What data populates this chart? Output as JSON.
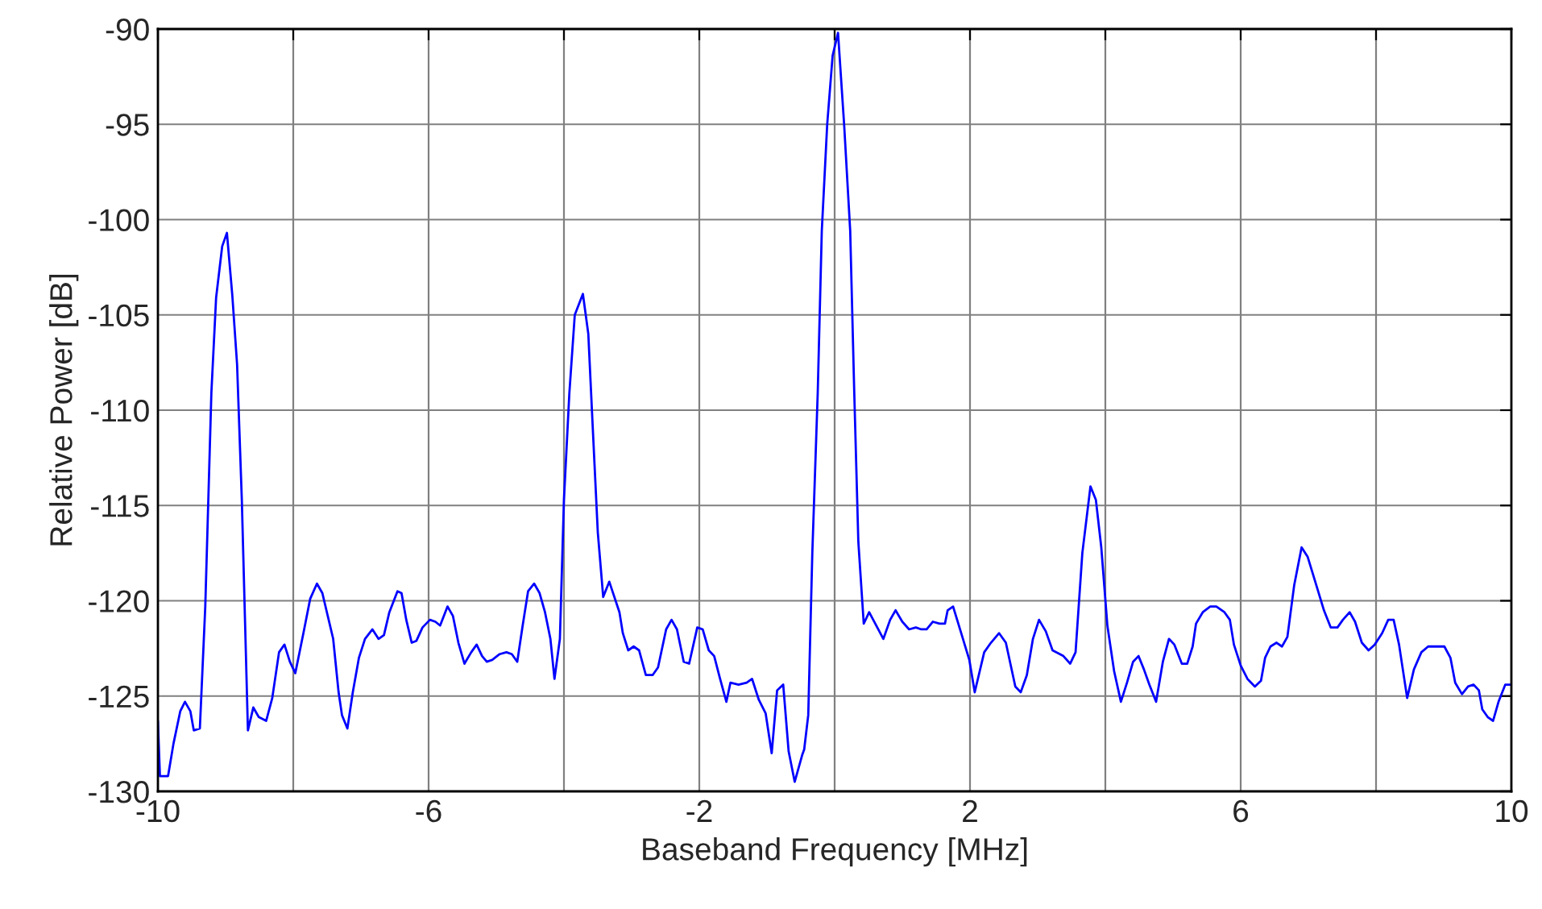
{
  "chart_data": {
    "type": "line",
    "xlabel": "Baseband Frequency [MHz]",
    "ylabel": "Relative Power [dB]",
    "xlim": [
      -10,
      10
    ],
    "ylim": [
      -130,
      -90
    ],
    "xticks": [
      -10,
      {
        "value": -8,
        "label": null
      },
      -6,
      {
        "value": -4,
        "label": null
      },
      -2,
      {
        "value": 0,
        "label": null
      },
      2,
      {
        "value": 4,
        "label": null
      },
      6,
      {
        "value": 8,
        "label": null
      },
      10
    ],
    "yticks": [
      -130,
      -125,
      -120,
      -115,
      -110,
      -105,
      -100,
      -95,
      -90
    ],
    "grid": true,
    "marker": "none",
    "line_style": "solid",
    "series": [
      {
        "color": "#0000ff",
        "x": [
          -10,
          -9.97,
          -9.9,
          -9.85,
          -9.77,
          -9.67,
          -9.6,
          -9.52,
          -9.47,
          -9.38,
          -9.3,
          -9.21,
          -9.14,
          -9.05,
          -8.98,
          -8.9,
          -8.83,
          -8.76,
          -8.67,
          -8.59,
          -8.51,
          -8.4,
          -8.31,
          -8.21,
          -8.13,
          -8.05,
          -7.97,
          -7.85,
          -7.75,
          -7.65,
          -7.57,
          -7.49,
          -7.41,
          -7.33,
          -7.28,
          -7.2,
          -7.12,
          -7.03,
          -6.94,
          -6.83,
          -6.74,
          -6.66,
          -6.58,
          -6.46,
          -6.4,
          -6.33,
          -6.25,
          -6.18,
          -6.09,
          -5.98,
          -5.9,
          -5.83,
          -5.72,
          -5.64,
          -5.56,
          -5.47,
          -5.37,
          -5.29,
          -5.21,
          -5.14,
          -5.06,
          -4.95,
          -4.85,
          -4.77,
          -4.69,
          -4.61,
          -4.53,
          -4.44,
          -4.36,
          -4.28,
          -4.2,
          -4.14,
          -4.06,
          -4.0,
          -3.92,
          -3.84,
          -3.72,
          -3.64,
          -3.58,
          -3.5,
          -3.42,
          -3.33,
          -3.18,
          -3.13,
          -3.05,
          -2.97,
          -2.89,
          -2.79,
          -2.69,
          -2.61,
          -2.49,
          -2.41,
          -2.33,
          -2.23,
          -2.15,
          -2.03,
          -1.95,
          -1.86,
          -1.78,
          -1.7,
          -1.6,
          -1.54,
          -1.42,
          -1.3,
          -1.22,
          -1.12,
          -1.02,
          -0.93,
          -0.85,
          -0.76,
          -0.68,
          -0.59,
          -0.48,
          -0.45,
          -0.39,
          -0.33,
          -0.25,
          -0.19,
          -0.11,
          -0.03,
          0.05,
          0.14,
          0.23,
          0.29,
          0.35,
          0.43,
          0.51,
          0.6,
          0.72,
          0.82,
          0.9,
          1.0,
          1.1,
          1.2,
          1.28,
          1.36,
          1.45,
          1.55,
          1.63,
          1.67,
          1.75,
          1.87,
          1.99,
          2.07,
          2.21,
          2.31,
          2.43,
          2.53,
          2.67,
          2.75,
          2.84,
          2.93,
          3.02,
          3.12,
          3.22,
          3.38,
          3.48,
          3.56,
          3.66,
          3.78,
          3.86,
          3.94,
          4.03,
          4.13,
          4.23,
          4.32,
          4.41,
          4.49,
          4.57,
          4.65,
          4.75,
          4.85,
          4.94,
          5.02,
          5.13,
          5.21,
          5.29,
          5.34,
          5.44,
          5.55,
          5.64,
          5.76,
          5.84,
          5.9,
          6.0,
          6.1,
          6.21,
          6.3,
          6.36,
          6.44,
          6.53,
          6.61,
          6.69,
          6.79,
          6.9,
          6.99,
          7.11,
          7.23,
          7.33,
          7.43,
          7.51,
          7.61,
          7.69,
          7.79,
          7.89,
          7.98,
          8.09,
          8.18,
          8.26,
          8.34,
          8.46,
          8.56,
          8.67,
          8.77,
          8.89,
          9.01,
          9.1,
          9.17,
          9.27,
          9.36,
          9.44,
          9.52,
          9.57,
          9.65,
          9.73,
          9.81,
          9.91,
          9.99
        ],
        "values": [
          -126.3,
          -129.2,
          -129.2,
          -129.2,
          -127.5,
          -125.8,
          -125.3,
          -125.8,
          -126.8,
          -126.7,
          -120.3,
          -109.1,
          -104.1,
          -101.4,
          -100.7,
          -104.0,
          -107.6,
          -114.7,
          -126.8,
          -125.6,
          -126.1,
          -126.3,
          -125.1,
          -122.7,
          -122.3,
          -123.2,
          -123.8,
          -121.7,
          -119.9,
          -119.1,
          -119.6,
          -120.8,
          -122.0,
          -124.8,
          -126.0,
          -126.7,
          -124.8,
          -123.0,
          -122.0,
          -121.5,
          -122.0,
          -121.8,
          -120.6,
          -119.5,
          -119.6,
          -121.0,
          -122.2,
          -122.1,
          -121.4,
          -121.0,
          -121.1,
          -121.3,
          -120.3,
          -120.8,
          -122.2,
          -123.3,
          -122.7,
          -122.3,
          -122.9,
          -123.2,
          -123.1,
          -122.8,
          -122.7,
          -122.8,
          -123.2,
          -121.3,
          -119.5,
          -119.1,
          -119.6,
          -120.6,
          -122.0,
          -124.1,
          -122.0,
          -114.7,
          -109.1,
          -105.0,
          -103.9,
          -106.0,
          -110.5,
          -116.4,
          -119.8,
          -119.0,
          -120.6,
          -121.7,
          -122.6,
          -122.4,
          -122.6,
          -123.9,
          -123.9,
          -123.5,
          -121.5,
          -121.0,
          -121.5,
          -123.2,
          -123.3,
          -121.4,
          -121.5,
          -122.6,
          -122.9,
          -124.0,
          -125.3,
          -124.3,
          -124.4,
          -124.3,
          -124.1,
          -125.2,
          -125.9,
          -128.0,
          -124.7,
          -124.4,
          -127.9,
          -129.5,
          -128.1,
          -127.8,
          -126.0,
          -117.5,
          -109.1,
          -100.6,
          -95.0,
          -91.4,
          -90.2,
          -95.0,
          -100.6,
          -109.1,
          -116.9,
          -121.2,
          -120.6,
          -121.2,
          -122.0,
          -121.0,
          -120.5,
          -121.1,
          -121.5,
          -121.4,
          -121.5,
          -121.5,
          -121.1,
          -121.2,
          -121.2,
          -120.5,
          -120.3,
          -121.7,
          -123.1,
          -124.8,
          -122.7,
          -122.2,
          -121.7,
          -122.2,
          -124.5,
          -124.8,
          -123.9,
          -122.0,
          -121.0,
          -121.6,
          -122.6,
          -122.9,
          -123.3,
          -122.7,
          -117.5,
          -114.0,
          -114.7,
          -117.2,
          -121.3,
          -123.7,
          -125.3,
          -124.3,
          -123.2,
          -122.9,
          -123.6,
          -124.4,
          -125.3,
          -123.2,
          -122.0,
          -122.3,
          -123.3,
          -123.3,
          -122.4,
          -121.2,
          -120.6,
          -120.3,
          -120.3,
          -120.6,
          -121.0,
          -122.3,
          -123.4,
          -124.1,
          -124.5,
          -124.2,
          -123.0,
          -122.4,
          -122.2,
          -122.4,
          -121.9,
          -119.2,
          -117.2,
          -117.7,
          -119.1,
          -120.5,
          -121.4,
          -121.4,
          -121.0,
          -120.6,
          -121.1,
          -122.2,
          -122.6,
          -122.3,
          -121.7,
          -121.0,
          -121.0,
          -122.3,
          -125.1,
          -123.6,
          -122.7,
          -122.4,
          -122.4,
          -122.4,
          -123.0,
          -124.3,
          -124.9,
          -124.5,
          -124.4,
          -124.7,
          -125.7,
          -126.1,
          -126.3,
          -125.3,
          -124.4,
          -124.4
        ]
      }
    ]
  }
}
